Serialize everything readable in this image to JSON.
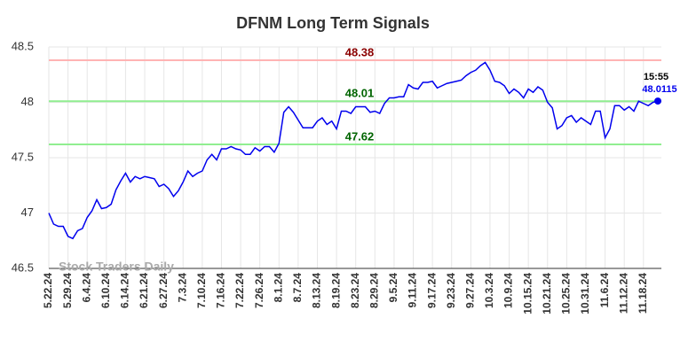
{
  "chart_data": {
    "type": "line",
    "title": "DFNM Long Term Signals",
    "categories": [
      "5.22.24",
      null,
      null,
      null,
      "5.29.24",
      null,
      null,
      null,
      "6.4.24",
      null,
      null,
      null,
      "6.10.24",
      null,
      null,
      null,
      "6.14.24",
      null,
      null,
      null,
      "6.21.24",
      null,
      null,
      null,
      "6.27.24",
      null,
      null,
      null,
      "7.3.24",
      null,
      null,
      null,
      "7.10.24",
      null,
      null,
      null,
      "7.16.24",
      null,
      null,
      null,
      "7.22.24",
      null,
      null,
      null,
      "7.26.24",
      null,
      null,
      null,
      "8.1.24",
      null,
      null,
      null,
      "8.7.24",
      null,
      null,
      null,
      "8.13.24",
      null,
      null,
      null,
      "8.19.24",
      null,
      null,
      null,
      "8.23.24",
      null,
      null,
      null,
      "8.29.24",
      null,
      null,
      null,
      "9.5.24",
      null,
      null,
      null,
      "9.11.24",
      null,
      null,
      null,
      "9.17.24",
      null,
      null,
      null,
      "9.23.24",
      null,
      null,
      null,
      "9.27.24",
      null,
      null,
      null,
      "10.3.24",
      null,
      null,
      null,
      "10.9.24",
      null,
      null,
      null,
      "10.15.24",
      null,
      null,
      null,
      "10.21.24",
      null,
      null,
      null,
      "10.25.24",
      null,
      null,
      null,
      "10.31.24",
      null,
      null,
      null,
      "11.6.24",
      null,
      null,
      null,
      "11.12.24",
      null,
      null,
      null,
      "11.18.24",
      null,
      null,
      null
    ],
    "series": [
      {
        "color": "#0000ee",
        "values": [
          47.0,
          46.9,
          46.88,
          46.88,
          46.79,
          46.77,
          46.84,
          46.86,
          46.96,
          47.02,
          47.12,
          47.04,
          47.05,
          47.08,
          47.21,
          47.29,
          47.36,
          47.28,
          47.33,
          47.31,
          47.33,
          47.32,
          47.31,
          47.24,
          47.26,
          47.22,
          47.15,
          47.2,
          47.28,
          47.38,
          47.33,
          47.36,
          47.38,
          47.48,
          47.53,
          47.48,
          47.58,
          47.58,
          47.6,
          47.58,
          47.57,
          47.53,
          47.53,
          47.59,
          47.56,
          47.6,
          47.6,
          47.55,
          47.63,
          47.91,
          47.96,
          47.91,
          47.84,
          47.77,
          47.77,
          47.77,
          47.83,
          47.86,
          47.8,
          47.83,
          47.76,
          47.92,
          47.92,
          47.9,
          47.96,
          47.96,
          47.96,
          47.91,
          47.92,
          47.9,
          47.99,
          48.04,
          48.04,
          48.05,
          48.05,
          48.16,
          48.13,
          48.12,
          48.18,
          48.18,
          48.19,
          48.13,
          48.15,
          48.17,
          48.18,
          48.19,
          48.2,
          48.24,
          48.27,
          48.29,
          48.33,
          48.36,
          48.29,
          48.19,
          48.18,
          48.15,
          48.08,
          48.12,
          48.09,
          48.04,
          48.12,
          48.09,
          48.14,
          48.11,
          48.0,
          47.95,
          47.76,
          47.79,
          47.86,
          47.88,
          47.82,
          47.86,
          47.83,
          47.8,
          47.92,
          47.92,
          47.68,
          47.76,
          47.97,
          47.97,
          47.93,
          47.96,
          47.92,
          48.01,
          47.99,
          47.97,
          48.0,
          48.0115
        ]
      }
    ],
    "last_time": "15:55",
    "reference_lines": [
      {
        "value": 48.38,
        "color": "#ffb3b3",
        "label_color": "#8b0000"
      },
      {
        "value": 48.01,
        "color": "#90ee90",
        "label_color": "#006400"
      },
      {
        "value": 47.62,
        "color": "#90ee90",
        "label_color": "#006400"
      }
    ],
    "watermark": "Stock Traders Daily",
    "ylim": [
      46.5,
      48.5
    ],
    "yticks": [
      46.5,
      47,
      47.5,
      48,
      48.5
    ],
    "grid": true
  }
}
